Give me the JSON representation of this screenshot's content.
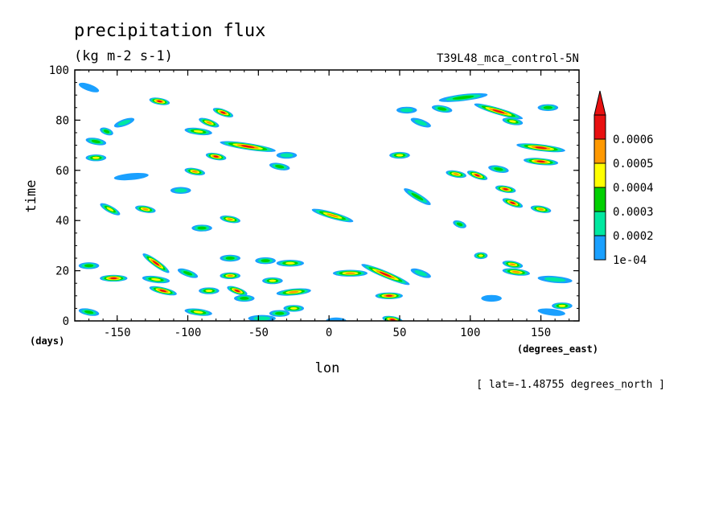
{
  "chart_data": {
    "type": "heatmap",
    "title": "precipitation flux",
    "units": "(kg m-2 s-1)",
    "run_name": "T39L48_mca_control-5N",
    "xlabel": "lon",
    "ylabel": "time",
    "x_units": "(degrees_east)",
    "y_units": "(days)",
    "footer": "[ lat=-1.48755 degrees_north ]",
    "xlim": [
      -180,
      177
    ],
    "ylim": [
      0,
      100
    ],
    "x_ticks": [
      -150,
      -100,
      -50,
      0,
      50,
      100,
      150
    ],
    "x_tick_labels": [
      "-150",
      "-100",
      "-50",
      "0",
      "50",
      "100",
      "150"
    ],
    "y_ticks": [
      0,
      20,
      40,
      60,
      80,
      100
    ],
    "y_tick_labels": [
      "0",
      "20",
      "40",
      "60",
      "80",
      "100"
    ],
    "colorbar": {
      "levels": [
        "1e-04",
        "0.0002",
        "0.0003",
        "0.0004",
        "0.0005",
        "0.0006"
      ],
      "colors": [
        "#1aa0ff",
        "#00e8a0",
        "#00d000",
        "#ffff00",
        "#ff9900",
        "#e81010"
      ]
    },
    "events": [
      {
        "lon": -175,
        "t": 94,
        "lon2": -165,
        "t2": 92,
        "peak": 1
      },
      {
        "lon": -125,
        "t": 88,
        "lon2": -115,
        "t2": 87,
        "peak": 6
      },
      {
        "lon": -80,
        "t": 84,
        "lon2": -70,
        "t2": 82,
        "peak": 6
      },
      {
        "lon": -90,
        "t": 80,
        "lon2": -80,
        "t2": 78,
        "peak": 5
      },
      {
        "lon": -100,
        "t": 76,
        "lon2": -85,
        "t2": 75,
        "peak": 4
      },
      {
        "lon": -75,
        "t": 71,
        "lon2": -40,
        "t2": 68,
        "peak": 6
      },
      {
        "lon": -35,
        "t": 66,
        "lon2": -25,
        "t2": 66,
        "peak": 2
      },
      {
        "lon": -160,
        "t": 76,
        "lon2": -155,
        "t2": 75,
        "peak": 3
      },
      {
        "lon": -170,
        "t": 72,
        "lon2": -160,
        "t2": 71,
        "peak": 3
      },
      {
        "lon": -170,
        "t": 65,
        "lon2": -160,
        "t2": 65,
        "peak": 4
      },
      {
        "lon": -85,
        "t": 66,
        "lon2": -75,
        "t2": 65,
        "peak": 6
      },
      {
        "lon": -100,
        "t": 60,
        "lon2": -90,
        "t2": 59,
        "peak": 5
      },
      {
        "lon": -40,
        "t": 62,
        "lon2": -30,
        "t2": 61,
        "peak": 3
      },
      {
        "lon": -150,
        "t": 78,
        "lon2": -140,
        "t2": 80,
        "peak": 2
      },
      {
        "lon": -150,
        "t": 57,
        "lon2": -130,
        "t2": 58,
        "peak": 1
      },
      {
        "lon": -110,
        "t": 52,
        "lon2": -100,
        "t2": 52,
        "peak": 2
      },
      {
        "lon": -160,
        "t": 46,
        "lon2": -150,
        "t2": 43,
        "peak": 4
      },
      {
        "lon": -135,
        "t": 45,
        "lon2": -125,
        "t2": 44,
        "peak": 5
      },
      {
        "lon": -75,
        "t": 41,
        "lon2": -65,
        "t2": 40,
        "peak": 5
      },
      {
        "lon": -95,
        "t": 37,
        "lon2": -85,
        "t2": 37,
        "peak": 3
      },
      {
        "lon": -10,
        "t": 44,
        "lon2": 15,
        "t2": 40,
        "peak": 5
      },
      {
        "lon": 45,
        "t": 66,
        "lon2": 55,
        "t2": 66,
        "peak": 4
      },
      {
        "lon": 50,
        "t": 84,
        "lon2": 60,
        "t2": 84,
        "peak": 2
      },
      {
        "lon": 75,
        "t": 85,
        "lon2": 85,
        "t2": 84,
        "peak": 3
      },
      {
        "lon": 60,
        "t": 80,
        "lon2": 70,
        "t2": 78,
        "peak": 2
      },
      {
        "lon": 80,
        "t": 88,
        "lon2": 110,
        "t2": 90,
        "peak": 3
      },
      {
        "lon": 105,
        "t": 86,
        "lon2": 135,
        "t2": 81,
        "peak": 6
      },
      {
        "lon": 125,
        "t": 80,
        "lon2": 135,
        "t2": 79,
        "peak": 4
      },
      {
        "lon": 150,
        "t": 85,
        "lon2": 160,
        "t2": 85,
        "peak": 3
      },
      {
        "lon": 135,
        "t": 70,
        "lon2": 165,
        "t2": 68,
        "peak": 6
      },
      {
        "lon": 140,
        "t": 64,
        "lon2": 160,
        "t2": 63,
        "peak": 6
      },
      {
        "lon": 85,
        "t": 59,
        "lon2": 95,
        "t2": 58,
        "peak": 5
      },
      {
        "lon": 100,
        "t": 59,
        "lon2": 110,
        "t2": 57,
        "peak": 6
      },
      {
        "lon": 115,
        "t": 61,
        "lon2": 125,
        "t2": 60,
        "peak": 3
      },
      {
        "lon": 120,
        "t": 53,
        "lon2": 130,
        "t2": 52,
        "peak": 6
      },
      {
        "lon": 125,
        "t": 48,
        "lon2": 135,
        "t2": 46,
        "peak": 6
      },
      {
        "lon": 145,
        "t": 45,
        "lon2": 155,
        "t2": 44,
        "peak": 5
      },
      {
        "lon": 90,
        "t": 39,
        "lon2": 95,
        "t2": 38,
        "peak": 3
      },
      {
        "lon": 55,
        "t": 52,
        "lon2": 70,
        "t2": 47,
        "peak": 3
      },
      {
        "lon": 105,
        "t": 26,
        "lon2": 110,
        "t2": 26,
        "peak": 4
      },
      {
        "lon": 125,
        "t": 23,
        "lon2": 135,
        "t2": 22,
        "peak": 5
      },
      {
        "lon": 125,
        "t": 20,
        "lon2": 140,
        "t2": 19,
        "peak": 5
      },
      {
        "lon": 150,
        "t": 17,
        "lon2": 170,
        "t2": 16,
        "peak": 2
      },
      {
        "lon": 110,
        "t": 9,
        "lon2": 120,
        "t2": 9,
        "peak": 1
      },
      {
        "lon": 160,
        "t": 6,
        "lon2": 170,
        "t2": 6,
        "peak": 4
      },
      {
        "lon": -175,
        "t": 22,
        "lon2": -165,
        "t2": 22,
        "peak": 3
      },
      {
        "lon": -160,
        "t": 17,
        "lon2": -145,
        "t2": 17,
        "peak": 6
      },
      {
        "lon": -130,
        "t": 26,
        "lon2": -115,
        "t2": 20,
        "peak": 6
      },
      {
        "lon": -130,
        "t": 17,
        "lon2": -115,
        "t2": 16,
        "peak": 4
      },
      {
        "lon": -125,
        "t": 13,
        "lon2": -110,
        "t2": 11,
        "peak": 6
      },
      {
        "lon": -105,
        "t": 20,
        "lon2": -95,
        "t2": 18,
        "peak": 3
      },
      {
        "lon": -90,
        "t": 12,
        "lon2": -80,
        "t2": 12,
        "peak": 4
      },
      {
        "lon": -75,
        "t": 18,
        "lon2": -65,
        "t2": 18,
        "peak": 5
      },
      {
        "lon": -70,
        "t": 13,
        "lon2": -60,
        "t2": 11,
        "peak": 6
      },
      {
        "lon": -75,
        "t": 25,
        "lon2": -65,
        "t2": 25,
        "peak": 3
      },
      {
        "lon": -50,
        "t": 24,
        "lon2": -40,
        "t2": 24,
        "peak": 3
      },
      {
        "lon": -35,
        "t": 23,
        "lon2": -20,
        "t2": 23,
        "peak": 4
      },
      {
        "lon": -45,
        "t": 16,
        "lon2": -35,
        "t2": 16,
        "peak": 4
      },
      {
        "lon": -35,
        "t": 11,
        "lon2": -15,
        "t2": 12,
        "peak": 5
      },
      {
        "lon": -65,
        "t": 9,
        "lon2": -55,
        "t2": 9,
        "peak": 3
      },
      {
        "lon": -30,
        "t": 5,
        "lon2": -20,
        "t2": 5,
        "peak": 4
      },
      {
        "lon": -40,
        "t": 3,
        "lon2": -30,
        "t2": 3,
        "peak": 3
      },
      {
        "lon": 5,
        "t": 19,
        "lon2": 25,
        "t2": 19,
        "peak": 5
      },
      {
        "lon": 25,
        "t": 22,
        "lon2": 55,
        "t2": 15,
        "peak": 6
      },
      {
        "lon": 35,
        "t": 10,
        "lon2": 50,
        "t2": 10,
        "peak": 6
      },
      {
        "lon": 40,
        "t": 1,
        "lon2": 50,
        "t2": 0,
        "peak": 6
      },
      {
        "lon": -175,
        "t": 4,
        "lon2": -165,
        "t2": 3,
        "peak": 3
      },
      {
        "lon": -100,
        "t": 4,
        "lon2": -85,
        "t2": 3,
        "peak": 4
      },
      {
        "lon": -55,
        "t": 1,
        "lon2": -40,
        "t2": 1,
        "peak": 2
      },
      {
        "lon": 0,
        "t": 0,
        "lon2": 10,
        "t2": 0,
        "peak": 1
      },
      {
        "lon": 60,
        "t": 20,
        "lon2": 70,
        "t2": 18,
        "peak": 2
      },
      {
        "lon": 150,
        "t": 4,
        "lon2": 165,
        "t2": 3,
        "peak": 1
      }
    ]
  }
}
